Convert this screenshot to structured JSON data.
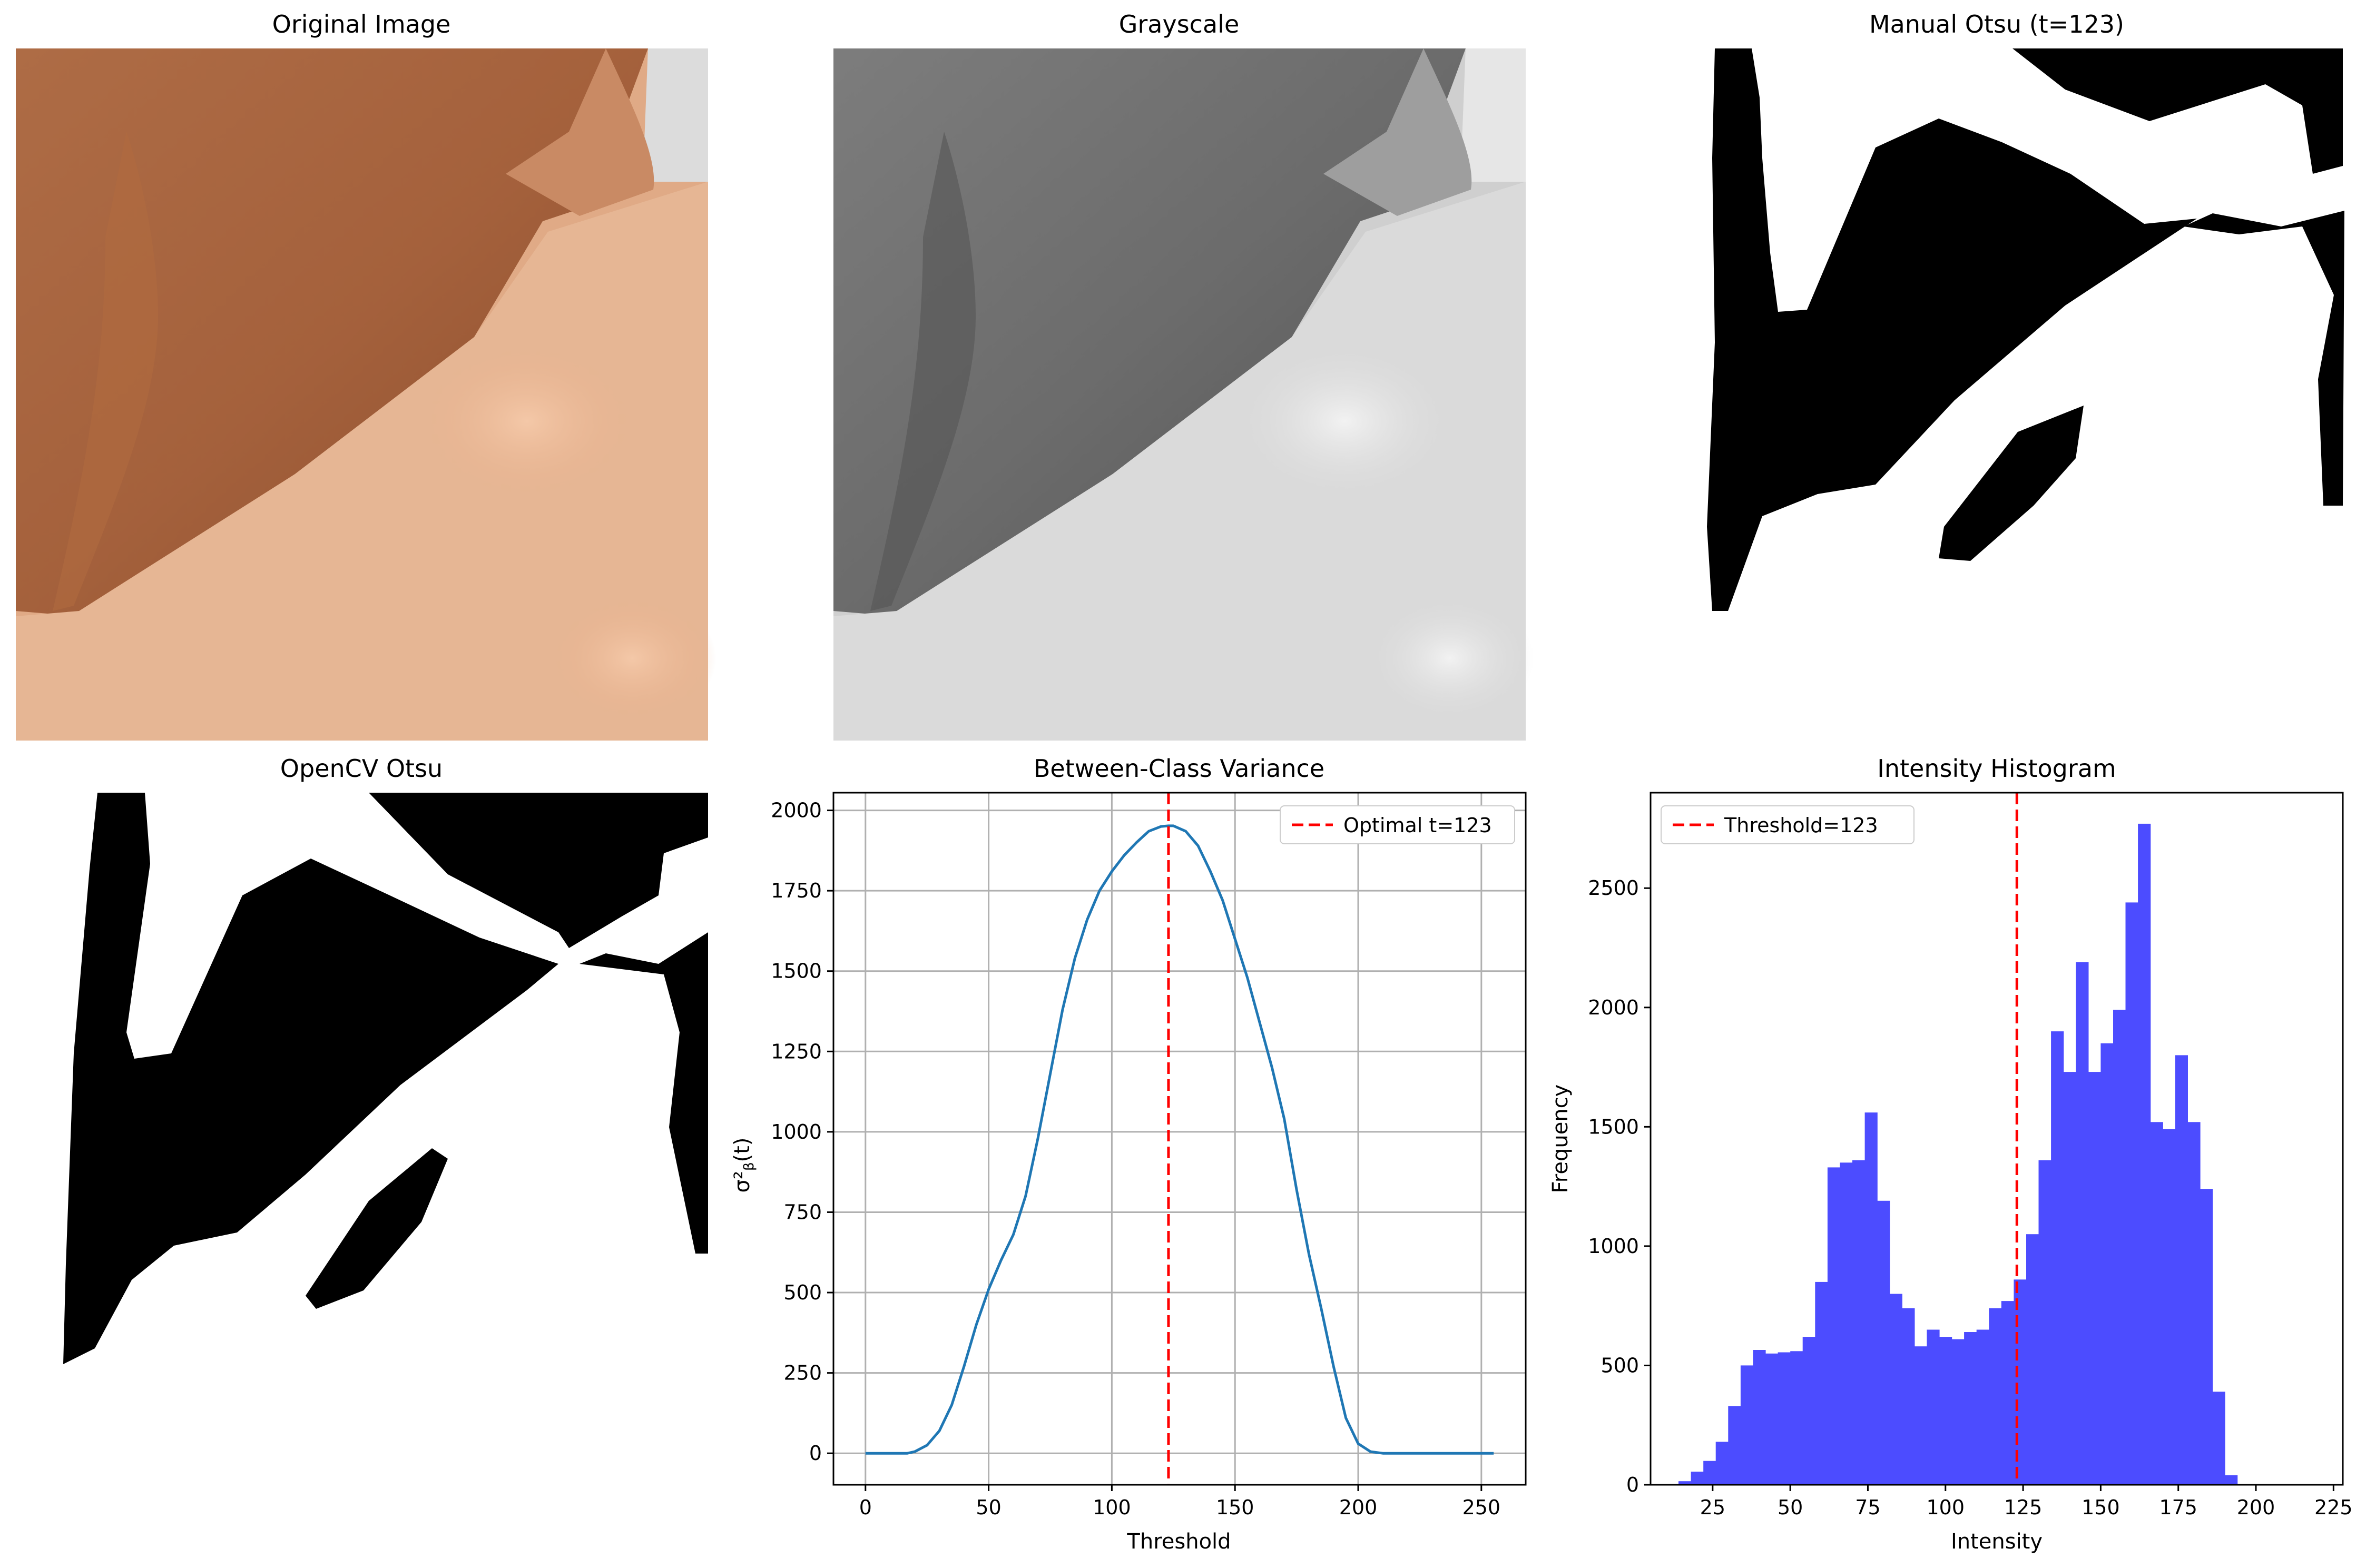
{
  "panels": {
    "original": {
      "title": "Original Image"
    },
    "grayscale": {
      "title": "Grayscale"
    },
    "manual_otsu": {
      "title": "Manual Otsu (t=123)"
    },
    "opencv_otsu": {
      "title": "OpenCV Otsu"
    }
  },
  "colors": {
    "variance_line": "#1f77b4",
    "threshold_line": "#ff0000",
    "histogram_bar": "#4c4cff",
    "grid": "#b0b0b0"
  },
  "chart_data": [
    {
      "type": "line",
      "title": "Between-Class Variance",
      "xlabel": "Threshold",
      "ylabel": "σ²_β(t)",
      "xlim": [
        -13,
        268
      ],
      "ylim": [
        -98,
        2055
      ],
      "xticks": [
        0,
        50,
        100,
        150,
        200,
        250
      ],
      "yticks": [
        0,
        250,
        500,
        750,
        1000,
        1250,
        1500,
        1750,
        2000
      ],
      "grid": true,
      "legend_position": "top-right",
      "series": [
        {
          "x": [
            0,
            17,
            20,
            25,
            30,
            35,
            40,
            45,
            50,
            55,
            60,
            65,
            70,
            75,
            80,
            85,
            90,
            95,
            100,
            105,
            110,
            115,
            120,
            123,
            125,
            130,
            135,
            140,
            145,
            150,
            155,
            160,
            165,
            170,
            175,
            180,
            185,
            190,
            195,
            200,
            205,
            210,
            215,
            220,
            255
          ],
          "y": [
            0,
            0,
            5,
            25,
            70,
            150,
            270,
            400,
            510,
            600,
            680,
            800,
            980,
            1180,
            1380,
            1540,
            1660,
            1750,
            1810,
            1860,
            1900,
            1935,
            1950,
            1952,
            1952,
            1935,
            1890,
            1810,
            1720,
            1600,
            1480,
            1340,
            1200,
            1040,
            820,
            620,
            450,
            270,
            110,
            30,
            5,
            0,
            0,
            0,
            0
          ]
        }
      ],
      "reference_line": {
        "x": 123,
        "label": "Optimal t=123"
      }
    },
    {
      "type": "bar",
      "title": "Intensity Histogram",
      "xlabel": "Intensity",
      "ylabel": "Frequency",
      "xlim": [
        5,
        228
      ],
      "ylim": [
        0,
        2900
      ],
      "xticks": [
        25,
        50,
        75,
        100,
        125,
        150,
        175,
        200,
        225
      ],
      "yticks": [
        0,
        500,
        1000,
        1500,
        2000,
        2500
      ],
      "grid": false,
      "legend_position": "top-left",
      "bin_start": 14,
      "bin_width": 4,
      "values": [
        15,
        55,
        100,
        180,
        330,
        500,
        565,
        550,
        555,
        560,
        620,
        850,
        1330,
        1350,
        1360,
        1560,
        1190,
        800,
        740,
        580,
        650,
        620,
        610,
        640,
        650,
        740,
        770,
        860,
        1050,
        1360,
        1900,
        1730,
        2190,
        1730,
        1850,
        1990,
        2440,
        2770,
        1520,
        1490,
        1800,
        1520,
        1240,
        390,
        40
      ],
      "reference_line": {
        "x": 123,
        "label": "Threshold=123"
      }
    }
  ]
}
